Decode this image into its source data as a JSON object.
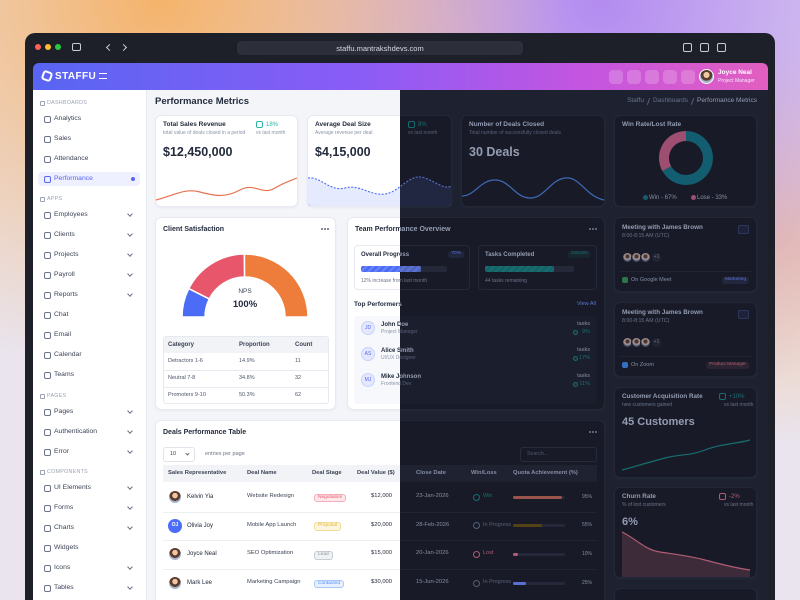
{
  "browser": {
    "url": "staffu.mantrakshdevs.com"
  },
  "header": {
    "brand": "STAFFU",
    "user_name": "Joyce Neal",
    "user_role": "Project Manager"
  },
  "sidebar": {
    "sections": [
      {
        "title": "DASHBOARDS",
        "items": [
          {
            "label": "Analytics"
          },
          {
            "label": "Sales"
          },
          {
            "label": "Attendance"
          },
          {
            "label": "Performance",
            "active": true
          }
        ]
      },
      {
        "title": "APPS",
        "items": [
          {
            "label": "Employees",
            "submenu": true
          },
          {
            "label": "Clients",
            "submenu": true
          },
          {
            "label": "Projects",
            "submenu": true
          },
          {
            "label": "Payroll",
            "submenu": true
          },
          {
            "label": "Reports",
            "submenu": true
          },
          {
            "label": "Chat"
          },
          {
            "label": "Email"
          },
          {
            "label": "Calendar"
          },
          {
            "label": "Teams"
          }
        ]
      },
      {
        "title": "PAGES",
        "items": [
          {
            "label": "Pages",
            "submenu": true
          },
          {
            "label": "Authentication",
            "submenu": true
          },
          {
            "label": "Error",
            "submenu": true
          }
        ]
      },
      {
        "title": "COMPONENTS",
        "items": [
          {
            "label": "UI Elements",
            "submenu": true
          },
          {
            "label": "Forms",
            "submenu": true
          },
          {
            "label": "Charts",
            "submenu": true
          },
          {
            "label": "Widgets"
          },
          {
            "label": "Icons",
            "submenu": true
          },
          {
            "label": "Tables",
            "submenu": true
          }
        ]
      }
    ]
  },
  "page": {
    "title": "Performance Metrics",
    "breadcrumb": [
      "Staffu",
      "Dashboards",
      "Performance Metrics"
    ]
  },
  "kpis": [
    {
      "title": "Total Sales Revenue",
      "subtitle": "total value of deals closed in a period",
      "value": "$12,450,000",
      "change": "18%",
      "change_note": "vs last month"
    },
    {
      "title": "Average Deal Size",
      "subtitle": "Average revenue per deal",
      "value": "$4,15,000",
      "change": "8%",
      "change_note": "vs last month"
    },
    {
      "title": "Number of Deals Closed",
      "subtitle": "Total number of successfully closed deals",
      "value": "30 Deals"
    }
  ],
  "win_rate": {
    "title": "Win Rate/Lost Rate",
    "series": [
      {
        "name": "Win - 67%",
        "value": 67,
        "color": "#4fc3d0"
      },
      {
        "name": "Lose - 33%",
        "value": 33,
        "color": "#f06b8f"
      }
    ]
  },
  "client_satisfaction": {
    "title": "Client Satisfaction",
    "gauge_label": "NPS",
    "gauge_value": "100%",
    "segments": [
      {
        "value": 14.9,
        "color": "#4a6cf7"
      },
      {
        "value": 34.8,
        "color": "#e8566b"
      },
      {
        "value": 50.3,
        "color": "#ee7d3c"
      }
    ],
    "table": {
      "columns": [
        "Category",
        "Proportion",
        "Count"
      ],
      "rows": [
        [
          "Detractors 1-6",
          "14.9%",
          "11"
        ],
        [
          "Neutral 7-8",
          "34.8%",
          "32"
        ],
        [
          "Promoters 9-10",
          "50.3%",
          "62"
        ]
      ]
    }
  },
  "team_performance": {
    "title": "Team Performance Overview",
    "progress": [
      {
        "label": "Overall Progress",
        "badge": "70%",
        "value": 70,
        "note": "12% increase from last month",
        "color": "#4a6cf7"
      },
      {
        "label": "Tasks Completed",
        "badge": "156/200",
        "value": 156,
        "max": 200,
        "note": "44 tasks remaining",
        "color": "#2bb5a6"
      }
    ],
    "performers_title": "Top Performers",
    "view_all": "View All",
    "performers": [
      {
        "initials": "JD",
        "name": "John Doe",
        "role": "Project Manager",
        "tasks_label": "tasks",
        "change": "9%"
      },
      {
        "initials": "AS",
        "name": "Alice Smith",
        "role": "UI/UX Designer",
        "tasks_label": "tasks",
        "change": "17%"
      },
      {
        "initials": "MJ",
        "name": "Mike Johnson",
        "role": "Frontend Dev",
        "tasks_label": "tasks",
        "change": "11%"
      }
    ]
  },
  "meetings": [
    {
      "title": "Meeting with James Brown",
      "time": "8:00-8:15 AM (UTC)",
      "extra": "+1",
      "platform": "On Google Meet",
      "platform_color": "#34a853",
      "tag": "Marketing",
      "tag_color": "#4a6cf7"
    },
    {
      "title": "Meeting with James Brown",
      "time": "8:00-8:15 AM (UTC)",
      "extra": "+1",
      "platform": "On Zoom",
      "platform_color": "#2d8cff",
      "tag": "Product Manager",
      "tag_color": "#e8566b"
    }
  ],
  "metrics": [
    {
      "title": "Customer Acquisition Rate",
      "subtitle": "new customers gained",
      "change": "+10%",
      "change_note": "vs last month",
      "value": "45 Customers",
      "color": "#2bb5a6"
    },
    {
      "title": "Churn Rate",
      "subtitle": "% of lost customers",
      "change": "-2%",
      "change_note": "vs last month",
      "value": "6%",
      "color": "#e8566b"
    }
  ],
  "deals": {
    "title": "Deals Performance Table",
    "page_size": "10",
    "page_size_label": "entries per page",
    "search_placeholder": "Search...",
    "columns": [
      "Sales Representative",
      "Deal Name",
      "Deal Stage",
      "Deal Value ($)",
      "Close Date",
      "Win/Loss",
      "Quota Achievement (%)"
    ],
    "rows": [
      {
        "rep": "Kelvin Yia",
        "deal": "Website Redesign",
        "stage": "Negotiation",
        "stage_color": "#e8566b",
        "value": "$12,000",
        "date": "23-Jan-2026",
        "result": "Win",
        "result_color": "#2bb5a6",
        "quota": 95,
        "quota_label": "95%",
        "quota_color": "#e8734f"
      },
      {
        "rep": "Olivia Joy",
        "initials": "OJ",
        "deal": "Mobile App Launch",
        "stage": "Proposal",
        "stage_color": "#e6b422",
        "value": "$20,000",
        "date": "28-Feb-2026",
        "result": "In Progress",
        "result_color": "#8a93a6",
        "quota": 55,
        "quota_label": "55%",
        "quota_color": "#e6c34a"
      },
      {
        "rep": "Joyce Neal",
        "deal": "SEO Optimization",
        "stage": "Lead",
        "stage_color": "#8a93a6",
        "value": "$15,000",
        "date": "20-Jan-2026",
        "result": "Lost",
        "result_color": "#e8566b",
        "quota": 10,
        "quota_label": "10%",
        "quota_color": "#e8566b"
      },
      {
        "rep": "Mark Lee",
        "deal": "Marketing Campaign",
        "stage": "Contacted",
        "stage_color": "#4a8cf7",
        "value": "$30,000",
        "date": "15-Jun-2026",
        "result": "In Progress",
        "result_color": "#8a93a6",
        "quota": 25,
        "quota_label": "25%",
        "quota_color": "#4a6cf7"
      }
    ]
  }
}
